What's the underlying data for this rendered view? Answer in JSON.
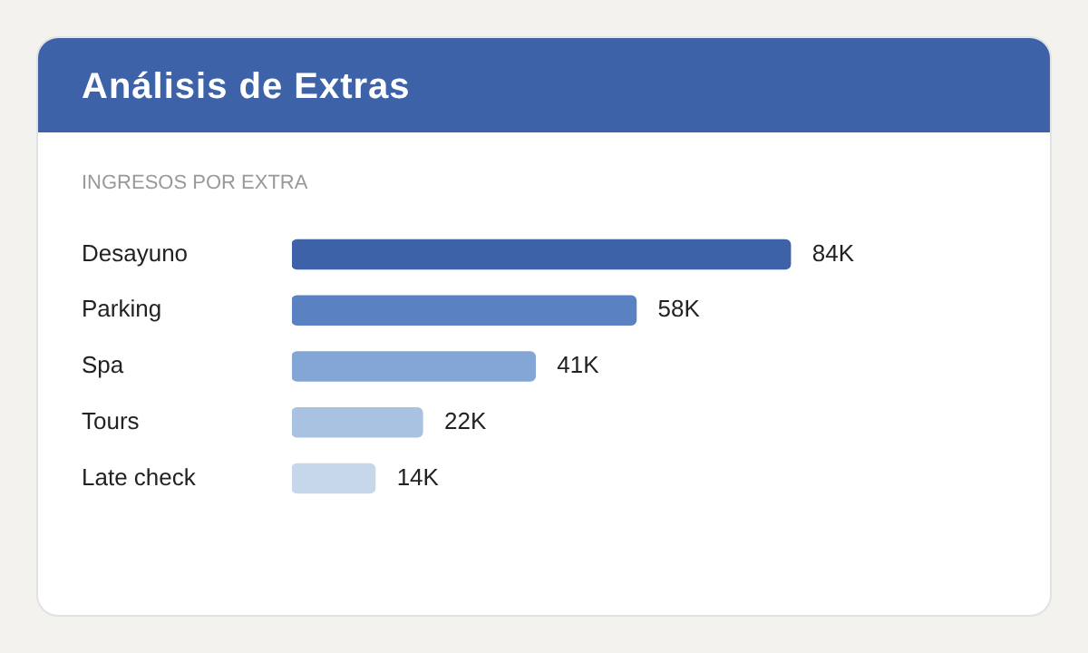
{
  "chart_data": {
    "type": "bar",
    "orientation": "horizontal",
    "title": "Análisis de Extras",
    "subtitle": "INGRESOS POR EXTRA",
    "categories": [
      "Desayuno",
      "Parking",
      "Spa",
      "Tours",
      "Late check"
    ],
    "values": [
      84,
      58,
      41,
      22,
      14
    ],
    "colors": [
      "#3d62a8",
      "#5a82c2",
      "#84a6d6",
      "#a9c2e1",
      "#c6d7eb"
    ],
    "value_labels": [
      "84K",
      "58K",
      "41K",
      "22K",
      "14K"
    ],
    "tick_labels": "y"
  }
}
